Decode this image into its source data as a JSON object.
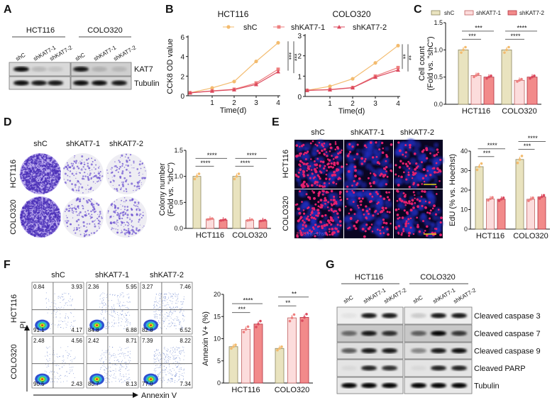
{
  "panel_labels": [
    "A",
    "B",
    "C",
    "D",
    "E",
    "F",
    "G"
  ],
  "conditions": [
    "shC",
    "shKAT7-1",
    "shKAT7-2"
  ],
  "cell_lines": [
    "HCT116",
    "COLO320"
  ],
  "colors": {
    "shC_fill": "#e9e3bf",
    "shC_stroke": "#8c8660",
    "sh1_fill": "#fcdcdc",
    "sh1_stroke": "#c06060",
    "sh2_fill": "#f28a8a",
    "sh2_stroke": "#b03040",
    "shC_line": "#f3bb6e",
    "sh1_line": "#ee7f7f",
    "sh2_line": "#dc4a5e"
  },
  "panel_a": {
    "bands": [
      "KAT7",
      "Tubulin"
    ]
  },
  "panel_d": {},
  "panel_e": {
    "stain_edu": "EdU",
    "stain_hoechst": "/Hoechst"
  },
  "panel_f": {
    "x_axis": "Annexin V",
    "y_axis": "PI",
    "quadrants": [
      [
        [
          "0.84",
          "3.93",
          "91.1",
          "4.17"
        ],
        [
          "2.36",
          "5.95",
          "84.8",
          "6.88"
        ],
        [
          "3.27",
          "7.46",
          "82.8",
          "6.52"
        ]
      ],
      [
        [
          "2.48",
          "4.56",
          "90.5",
          "2.43"
        ],
        [
          "2.42",
          "8.71",
          "80.7",
          "8.13"
        ],
        [
          "7.39",
          "8.22",
          "77.0",
          "7.34"
        ]
      ]
    ]
  },
  "panel_g": {
    "bands": [
      "Cleaved caspase 3",
      "Cleaved caspase 7",
      "Cleaved caspase 9",
      "Cleaved PARP",
      "Tubulin"
    ]
  },
  "chart_data": [
    {
      "type": "line",
      "panel": "B",
      "title": "HCT116",
      "xlabel": "Time(d)",
      "ylabel": "CCK8 OD value",
      "x": [
        0,
        1,
        2,
        3,
        4
      ],
      "xticks": [
        "1",
        "2",
        "3",
        "4"
      ],
      "yticks": [
        "0",
        "2",
        "4",
        "6"
      ],
      "ylim": [
        0,
        6
      ],
      "series": [
        {
          "name": "shC",
          "values": [
            0.3,
            0.8,
            1.45,
            3.5,
            5.4
          ]
        },
        {
          "name": "shKAT7-1",
          "values": [
            0.3,
            0.5,
            0.66,
            1.3,
            2.7
          ]
        },
        {
          "name": "shKAT7-2",
          "values": [
            0.3,
            0.48,
            0.62,
            1.15,
            2.45
          ]
        }
      ],
      "significance": [
        "***",
        "***"
      ]
    },
    {
      "type": "line",
      "panel": "B",
      "title": "COLO320",
      "xlabel": "Time(d)",
      "ylabel": "",
      "x": [
        0,
        1,
        2,
        3,
        4
      ],
      "xticks": [
        "1",
        "2",
        "3",
        "4"
      ],
      "yticks": [
        "0",
        "1",
        "2",
        "3"
      ],
      "ylim": [
        0,
        3
      ],
      "series": [
        {
          "name": "shC",
          "values": [
            0.3,
            0.5,
            0.87,
            1.65,
            2.5
          ]
        },
        {
          "name": "shKAT7-1",
          "values": [
            0.3,
            0.34,
            0.44,
            1.0,
            1.42
          ]
        },
        {
          "name": "shKAT7-2",
          "values": [
            0.3,
            0.33,
            0.43,
            0.95,
            1.3
          ]
        }
      ],
      "significance": [
        "**",
        "**"
      ]
    },
    {
      "type": "bar",
      "panel": "C",
      "categories": [
        "HCT116",
        "COLO320"
      ],
      "ylabel": [
        "Cell count",
        "(Fold vs. \"shC\")"
      ],
      "yticks": [
        "0.0",
        "0.5",
        "1.0",
        "1.5"
      ],
      "ylim": [
        0,
        1.5
      ],
      "series": [
        {
          "name": "shC",
          "values": [
            1.0,
            1.0
          ]
        },
        {
          "name": "shKAT7-1",
          "values": [
            0.53,
            0.44
          ]
        },
        {
          "name": "shKAT7-2",
          "values": [
            0.5,
            0.5
          ]
        }
      ],
      "significance": [
        [
          "***",
          "***"
        ],
        [
          "****",
          "****"
        ]
      ],
      "legend": "top"
    },
    {
      "type": "bar",
      "panel": "D",
      "categories": [
        "HCT116",
        "COLO320"
      ],
      "ylabel": [
        "Colony number",
        "(Fold vs. \"shC\")"
      ],
      "yticks": [
        "0.0",
        "0.5",
        "1.0",
        "1.5"
      ],
      "ylim": [
        0,
        1.5
      ],
      "series": [
        {
          "name": "shC",
          "values": [
            1.0,
            1.0
          ]
        },
        {
          "name": "shKAT7-1",
          "values": [
            0.18,
            0.16
          ]
        },
        {
          "name": "shKAT7-2",
          "values": [
            0.16,
            0.15
          ]
        }
      ],
      "significance": [
        [
          "****",
          "****"
        ],
        [
          "****",
          "****"
        ]
      ]
    },
    {
      "type": "bar",
      "panel": "E",
      "categories": [
        "HCT116",
        "COLO320"
      ],
      "ylabel": [
        "EdU (% vs. Hoechst)"
      ],
      "yticks": [
        "0",
        "10",
        "20",
        "30",
        "40"
      ],
      "ylim": [
        0,
        40
      ],
      "series": [
        {
          "name": "shC",
          "values": [
            32,
            35.7
          ]
        },
        {
          "name": "shKAT7-1",
          "values": [
            15.5,
            15.3
          ]
        },
        {
          "name": "shKAT7-2",
          "values": [
            15.3,
            16.5
          ]
        }
      ],
      "significance": [
        [
          "***",
          "****"
        ],
        [
          "***",
          "****"
        ]
      ]
    },
    {
      "type": "bar",
      "panel": "F",
      "categories": [
        "HCT116",
        "COLO320"
      ],
      "ylabel": [
        "Annexin V+ (%)"
      ],
      "yticks": [
        "0",
        "5",
        "10",
        "15",
        "20"
      ],
      "ylim": [
        0,
        20
      ],
      "series": [
        {
          "name": "shC",
          "values": [
            8.2,
            7.8
          ]
        },
        {
          "name": "shKAT7-1",
          "values": [
            12.1,
            14.7
          ]
        },
        {
          "name": "shKAT7-2",
          "values": [
            13.3,
            14.8
          ]
        }
      ],
      "significance": [
        [
          "***",
          "****"
        ],
        [
          "**",
          "**"
        ]
      ]
    }
  ]
}
